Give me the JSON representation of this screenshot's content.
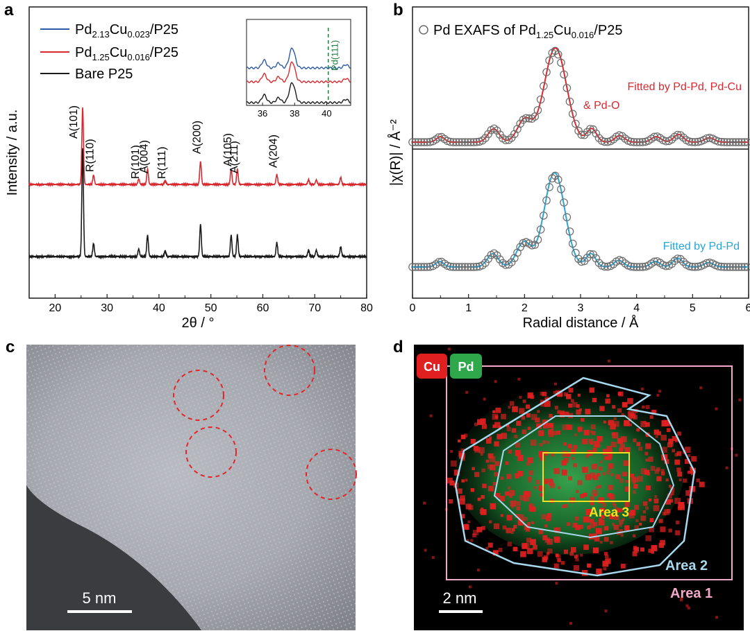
{
  "panels": {
    "a": {
      "letter": "a"
    },
    "b": {
      "letter": "b"
    },
    "c": {
      "letter": "c",
      "scalebar": "5 nm"
    },
    "d": {
      "letter": "d",
      "scalebar": "2 nm",
      "legend_cu": "Cu",
      "legend_pd": "Pd",
      "area1": "Area 1",
      "area2": "Area 2",
      "area3": "Area 3"
    }
  },
  "colors": {
    "blue": "#2d5aa6",
    "red": "#d9292f",
    "black": "#1a1a1a",
    "fit_red": "#d9292f",
    "fit_blue": "#2aa3d6",
    "marker": "#6b6b6b",
    "pd111": "#1f7a3a",
    "circle": "#e0262b",
    "area1": "#f2a8c8",
    "area2": "#a8d8ee",
    "area3": "#f4e01c",
    "cu": "#e02020",
    "pd": "#2ea84a",
    "area3_text": "#f4e01c",
    "area2_text": "#a8d8ee",
    "area1_text": "#f2a8c8"
  },
  "chart_data": [
    {
      "type": "line",
      "xlabel": "2θ / °",
      "ylabel": "Intensity / a.u.",
      "xlim": [
        15,
        80
      ],
      "xticks": [
        20,
        30,
        40,
        50,
        60,
        70,
        80
      ],
      "series": [
        {
          "name": "Pd2.13Cu0.023/P25",
          "name_base": "Pd",
          "sub1": "2.13",
          "mid": "Cu",
          "sub2": "0.023",
          "suffix": "/P25",
          "color_key": "blue"
        },
        {
          "name": "Pd1.25Cu0.016/P25",
          "name_base": "Pd",
          "sub1": "1.25",
          "mid": "Cu",
          "sub2": "0.016",
          "suffix": "/P25",
          "color_key": "red"
        },
        {
          "name": "Bare P25",
          "color_key": "black"
        }
      ],
      "peaks": [
        {
          "x": 25.3,
          "h": 1.0,
          "label": "A(101)"
        },
        {
          "x": 27.4,
          "h": 0.12,
          "label": "R(110)"
        },
        {
          "x": 36.1,
          "h": 0.07,
          "label": "R(101)"
        },
        {
          "x": 37.8,
          "h": 0.2,
          "label": "A(004)"
        },
        {
          "x": 41.2,
          "h": 0.05,
          "label": "R(111)"
        },
        {
          "x": 48.0,
          "h": 0.3,
          "label": "A(200)"
        },
        {
          "x": 53.9,
          "h": 0.2,
          "label": "A(105)"
        },
        {
          "x": 55.1,
          "h": 0.2,
          "label": "A(211)"
        },
        {
          "x": 62.7,
          "h": 0.13,
          "label": "A(204)"
        },
        {
          "x": 68.8,
          "h": 0.06,
          "label": ""
        },
        {
          "x": 70.3,
          "h": 0.06,
          "label": ""
        },
        {
          "x": 75.0,
          "h": 0.09,
          "label": ""
        }
      ],
      "inset": {
        "xlim": [
          35,
          41.5
        ],
        "xticks": [
          36,
          38,
          40
        ],
        "marker_label": "Pd(111)",
        "marker_x": 40.1
      }
    },
    {
      "type": "line",
      "xlabel": "Radial distance / Å",
      "ylabel": "|χ(R)| / Å⁻²",
      "xlim": [
        0,
        6
      ],
      "xticks": [
        0,
        1,
        2,
        3,
        4,
        5,
        6
      ],
      "legend": {
        "prefix": "Pd EXAFS of Pd",
        "sub1": "1.25",
        "mid": "Cu",
        "sub2": "0.016",
        "suffix": "/P25"
      },
      "panels": [
        {
          "fit_label_line1": "Fitted by Pd-Pd, Pd-Cu",
          "fit_label_line2": "& Pd-O",
          "fit_color_key": "fit_red"
        },
        {
          "fit_label_line1": "Fitted by Pd-Pd",
          "fit_label_line2": "",
          "fit_color_key": "fit_blue"
        }
      ],
      "exafs_peaks_upper": [
        [
          0.5,
          0.05,
          0.1
        ],
        [
          1.45,
          0.12,
          0.14
        ],
        [
          2.0,
          0.2,
          0.18
        ],
        [
          2.55,
          0.85,
          0.28
        ],
        [
          3.2,
          0.12,
          0.12
        ],
        [
          3.7,
          0.06,
          0.12
        ],
        [
          4.35,
          0.05,
          0.12
        ],
        [
          4.75,
          0.07,
          0.12
        ],
        [
          5.3,
          0.04,
          0.12
        ]
      ],
      "exafs_peaks_lower": [
        [
          0.5,
          0.05,
          0.1
        ],
        [
          1.45,
          0.12,
          0.14
        ],
        [
          2.0,
          0.22,
          0.18
        ],
        [
          2.55,
          0.85,
          0.26
        ],
        [
          3.2,
          0.12,
          0.12
        ],
        [
          3.7,
          0.06,
          0.12
        ],
        [
          4.35,
          0.05,
          0.12
        ],
        [
          4.75,
          0.08,
          0.12
        ],
        [
          5.3,
          0.04,
          0.12
        ]
      ]
    }
  ]
}
